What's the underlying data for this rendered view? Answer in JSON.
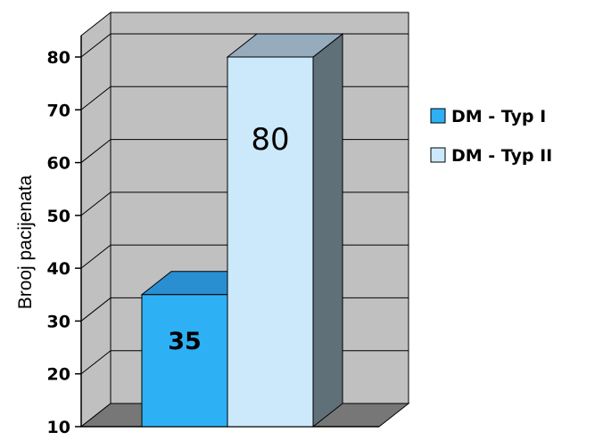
{
  "chart_data": {
    "type": "bar",
    "three_d": true,
    "title": "",
    "xlabel": "",
    "ylabel": "Brooj pacijenata",
    "ylim": [
      10,
      80
    ],
    "yticks": [
      10,
      20,
      30,
      40,
      50,
      60,
      70,
      80
    ],
    "grid": true,
    "legend_position": "right",
    "series": [
      {
        "name": "DM - Typ I",
        "value": 35,
        "label": "35",
        "color": "#2eb0f5"
      },
      {
        "name": "DM - Typ II",
        "value": 80,
        "label": "80",
        "color": "#cce9fb"
      }
    ]
  },
  "colors": {
    "wall": "#c0c0c0",
    "floor": "#777777",
    "grid": "#000000"
  }
}
